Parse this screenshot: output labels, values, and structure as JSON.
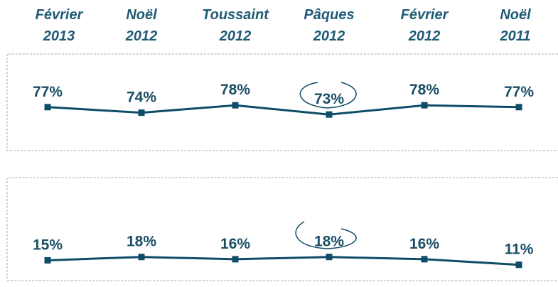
{
  "chart_data": [
    {
      "type": "line",
      "categories": [
        "Février\n2013",
        "Noël\n2012",
        "Toussaint\n2012",
        "Pâques\n2012",
        "Février\n2012",
        "Noël\n2011"
      ],
      "values": [
        77,
        74,
        78,
        73,
        78,
        77
      ],
      "value_labels": [
        "77%",
        "74%",
        "78%",
        "73%",
        "78%",
        "77%"
      ],
      "color": "#0f4c68",
      "ylim": [
        0,
        100
      ]
    },
    {
      "type": "line",
      "values": [
        15,
        18,
        16,
        18,
        16,
        11
      ],
      "value_labels": [
        "15%",
        "18%",
        "16%",
        "18%",
        "16%",
        "11%"
      ],
      "color": "#0f4c68",
      "ylim": [
        0,
        100
      ]
    }
  ]
}
